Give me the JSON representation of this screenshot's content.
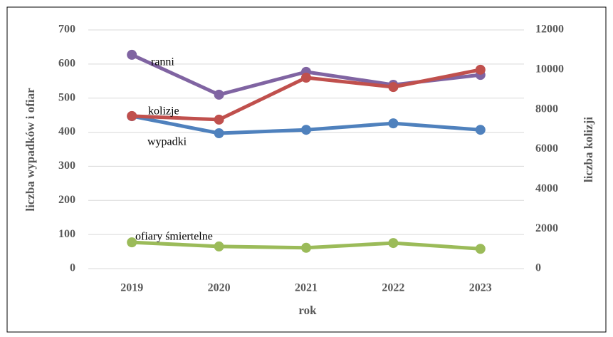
{
  "chart_data": {
    "type": "line",
    "categories": [
      "2019",
      "2020",
      "2021",
      "2022",
      "2023"
    ],
    "x_label": "rok",
    "y_label": "liczba wypadków i ofiar",
    "y2_label": "liczba kolizji",
    "ylim": [
      0,
      700
    ],
    "yticks": [
      0,
      100,
      200,
      300,
      400,
      500,
      600,
      700
    ],
    "y2lim": [
      0,
      12000
    ],
    "y2ticks": [
      0,
      2000,
      4000,
      6000,
      8000,
      10000,
      12000
    ],
    "grid": true,
    "series": [
      {
        "name": "wypadki",
        "color": "#4f81bd",
        "values": [
          447,
          397,
          407,
          426,
          407
        ]
      },
      {
        "name": "ranni",
        "color": "#8064a2",
        "values": [
          627,
          510,
          577,
          539,
          568
        ]
      },
      {
        "name": "kolizje",
        "color": "#c0504d",
        "axis": "y2",
        "values": [
          7670,
          7490,
          9600,
          9130,
          10000
        ]
      },
      {
        "name": "ofiary śmiertelne",
        "color": "#9bbb59",
        "values": [
          77,
          65,
          61,
          75,
          58
        ]
      }
    ]
  }
}
